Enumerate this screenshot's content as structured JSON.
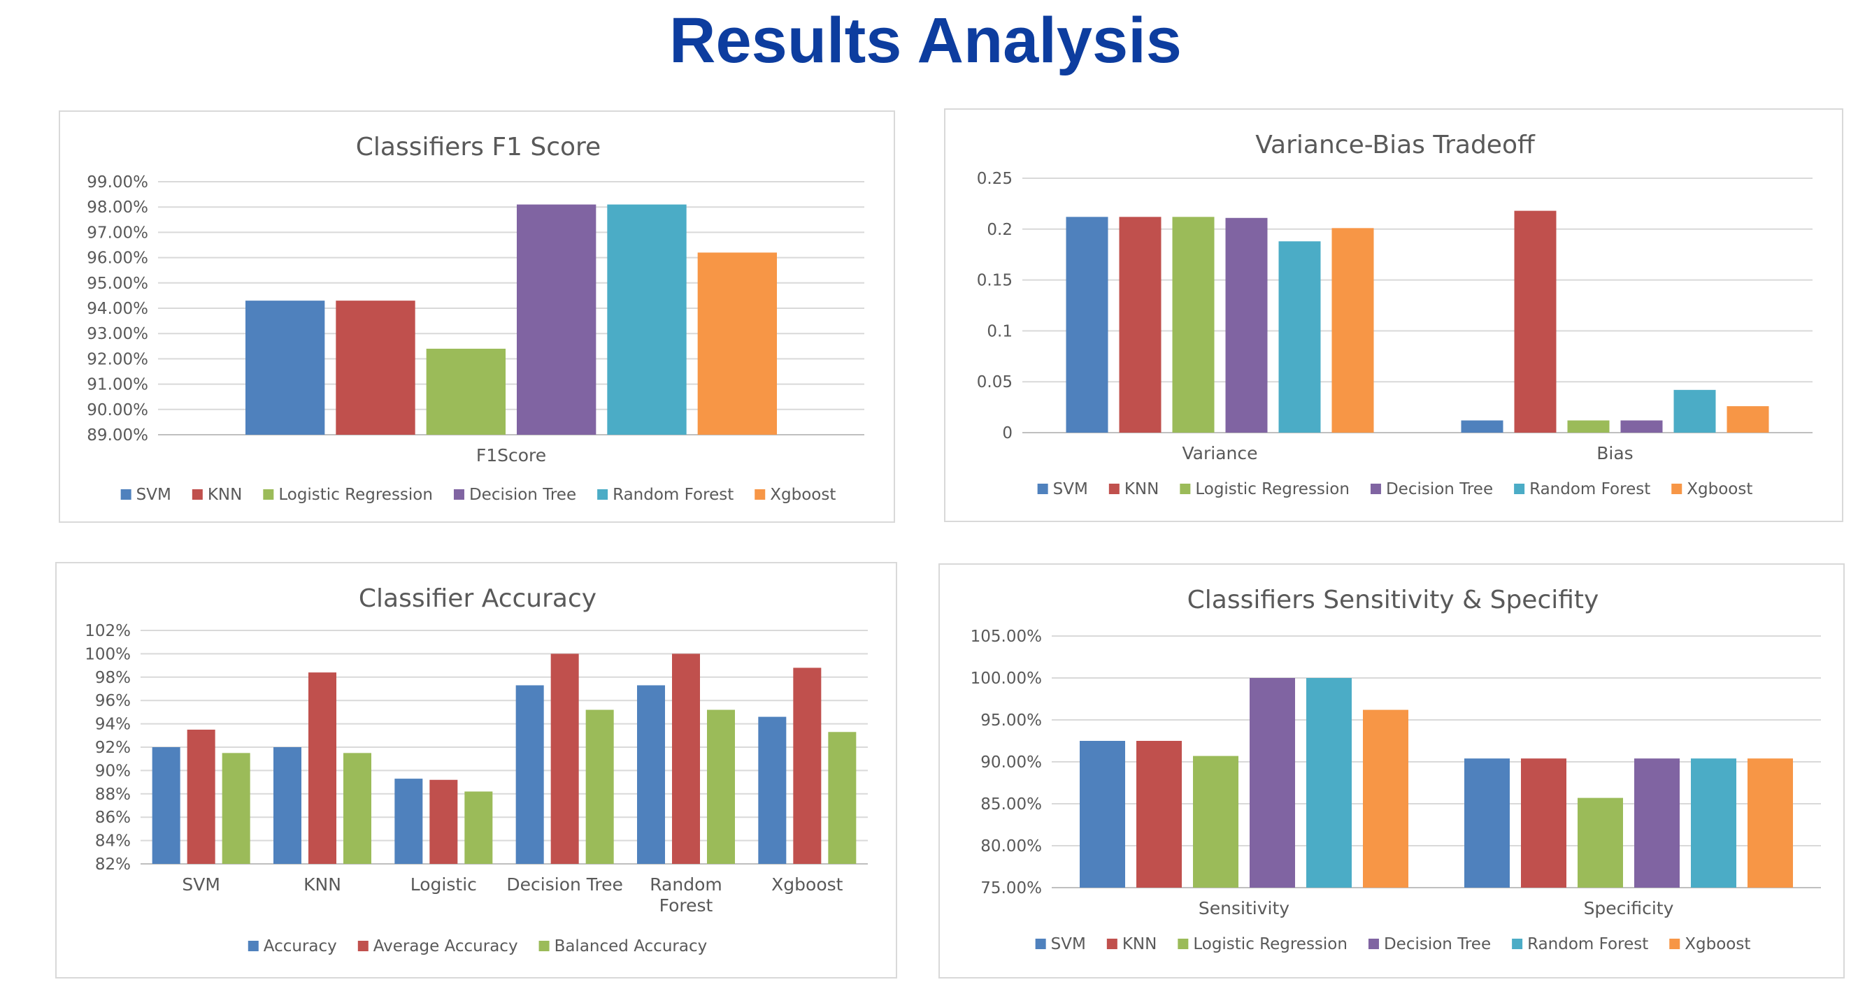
{
  "page": {
    "title": "Results Analysis"
  },
  "chart_data": [
    {
      "id": "f1",
      "type": "bar",
      "title": "Classifiers F1 Score",
      "categories": [
        "F1Score"
      ],
      "yticks": [
        "89.00%",
        "90.00%",
        "91.00%",
        "92.00%",
        "93.00%",
        "94.00%",
        "95.00%",
        "96.00%",
        "97.00%",
        "98.00%",
        "99.00%"
      ],
      "ylim": [
        89,
        99
      ],
      "legend_position": "bottom",
      "series": [
        {
          "name": "SVM",
          "color": "#4f81bd",
          "values": [
            94.3
          ]
        },
        {
          "name": "KNN",
          "color": "#c0504d",
          "values": [
            94.3
          ]
        },
        {
          "name": "Logistic Regression",
          "color": "#9bbb59",
          "values": [
            92.4
          ]
        },
        {
          "name": "Decision Tree",
          "color": "#8064a2",
          "values": [
            98.1
          ]
        },
        {
          "name": "Random Forest",
          "color": "#4bacc6",
          "values": [
            98.1
          ]
        },
        {
          "name": "Xgboost",
          "color": "#f79646",
          "values": [
            96.2
          ]
        }
      ]
    },
    {
      "id": "vb",
      "type": "bar",
      "title": "Variance-Bias Tradeoff",
      "categories": [
        "Variance",
        "Bias"
      ],
      "yticks": [
        "0",
        "0.05",
        "0.1",
        "0.15",
        "0.2",
        "0.25"
      ],
      "ylim": [
        0,
        0.25
      ],
      "legend_position": "bottom",
      "series": [
        {
          "name": "SVM",
          "color": "#4f81bd",
          "values": [
            0.212,
            0.012
          ]
        },
        {
          "name": "KNN",
          "color": "#c0504d",
          "values": [
            0.212,
            0.218
          ]
        },
        {
          "name": "Logistic Regression",
          "color": "#9bbb59",
          "values": [
            0.212,
            0.012
          ]
        },
        {
          "name": "Decision Tree",
          "color": "#8064a2",
          "values": [
            0.211,
            0.012
          ]
        },
        {
          "name": "Random Forest",
          "color": "#4bacc6",
          "values": [
            0.188,
            0.042
          ]
        },
        {
          "name": "Xgboost",
          "color": "#f79646",
          "values": [
            0.201,
            0.026
          ]
        }
      ]
    },
    {
      "id": "acc",
      "type": "bar",
      "title": "Classifier Accuracy",
      "categories": [
        [
          "SVM"
        ],
        [
          "KNN"
        ],
        [
          "Logistic"
        ],
        [
          "Decision Tree"
        ],
        [
          "Random",
          "Forest"
        ],
        [
          "Xgboost"
        ]
      ],
      "yticks": [
        "82%",
        "84%",
        "86%",
        "88%",
        "90%",
        "92%",
        "94%",
        "96%",
        "98%",
        "100%",
        "102%"
      ],
      "ylim": [
        82,
        102
      ],
      "legend_position": "bottom",
      "series": [
        {
          "name": "Accuracy",
          "color": "#4f81bd",
          "values": [
            92.0,
            92.0,
            89.3,
            97.3,
            97.3,
            94.6
          ]
        },
        {
          "name": "Average Accuracy",
          "color": "#c0504d",
          "values": [
            93.5,
            98.4,
            89.2,
            100.0,
            100.0,
            98.8
          ]
        },
        {
          "name": "Balanced Accuracy",
          "color": "#9bbb59",
          "values": [
            91.5,
            91.5,
            88.2,
            95.2,
            95.2,
            93.3
          ]
        }
      ]
    },
    {
      "id": "ss",
      "type": "bar",
      "title": "Classifiers Sensitivity & Specifity",
      "categories": [
        "Sensitivity",
        "Specificity"
      ],
      "yticks": [
        "75.00%",
        "80.00%",
        "85.00%",
        "90.00%",
        "95.00%",
        "100.00%",
        "105.00%"
      ],
      "ylim": [
        75,
        105
      ],
      "legend_position": "bottom",
      "series": [
        {
          "name": "SVM",
          "color": "#4f81bd",
          "values": [
            92.5,
            90.4
          ]
        },
        {
          "name": "KNN",
          "color": "#c0504d",
          "values": [
            92.5,
            90.4
          ]
        },
        {
          "name": "Logistic Regression",
          "color": "#9bbb59",
          "values": [
            90.7,
            85.7
          ]
        },
        {
          "name": "Decision Tree",
          "color": "#8064a2",
          "values": [
            100.0,
            90.4
          ]
        },
        {
          "name": "Random Forest",
          "color": "#4bacc6",
          "values": [
            100.0,
            90.4
          ]
        },
        {
          "name": "Xgboost",
          "color": "#f79646",
          "values": [
            96.2,
            90.4
          ]
        }
      ]
    }
  ]
}
